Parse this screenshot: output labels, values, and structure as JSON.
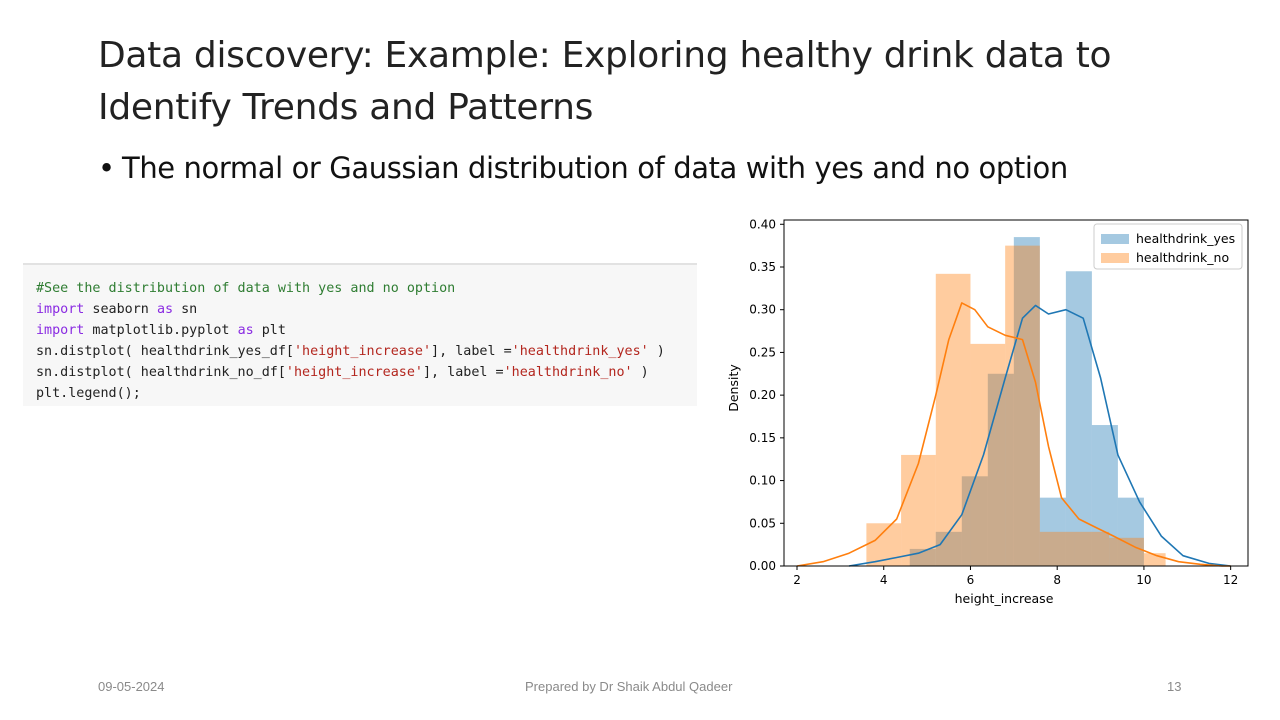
{
  "slide": {
    "title": "Data discovery: Example: Exploring healthy drink data to Identify Trends and Patterns",
    "bullet": "The normal or Gaussian distribution of data with yes and no option",
    "bullet_symbol": "•"
  },
  "code": {
    "lines": [
      [
        {
          "t": "#See the distribution of data with yes and no option",
          "c": "comment"
        }
      ],
      [
        {
          "t": "import",
          "c": "keyword"
        },
        {
          "t": " seaborn ",
          "c": ""
        },
        {
          "t": "as",
          "c": "keyword"
        },
        {
          "t": " sn",
          "c": ""
        }
      ],
      [
        {
          "t": "import",
          "c": "keyword"
        },
        {
          "t": " matplotlib.pyplot ",
          "c": ""
        },
        {
          "t": "as",
          "c": "keyword"
        },
        {
          "t": " plt",
          "c": ""
        }
      ],
      [
        {
          "t": "sn.distplot( healthdrink_yes_df[",
          "c": ""
        },
        {
          "t": "'height_increase'",
          "c": "string"
        },
        {
          "t": "], label =",
          "c": ""
        },
        {
          "t": "'healthdrink_yes'",
          "c": "string"
        },
        {
          "t": " )",
          "c": ""
        }
      ],
      [
        {
          "t": "sn.distplot( healthdrink_no_df[",
          "c": ""
        },
        {
          "t": "'height_increase'",
          "c": "string"
        },
        {
          "t": "], label =",
          "c": ""
        },
        {
          "t": "'healthdrink_no'",
          "c": "string"
        },
        {
          "t": " )",
          "c": ""
        }
      ],
      [
        {
          "t": "plt.legend();",
          "c": ""
        }
      ]
    ]
  },
  "footer": {
    "date": "09-05-2024",
    "author": "Prepared by Dr Shaik Abdul Qadeer",
    "page": "13"
  },
  "colors": {
    "yes": "#1f77b4",
    "no": "#ff7f0e"
  },
  "chart_data": {
    "type": "histogram+kde",
    "title": "",
    "xlabel": "height_increase",
    "ylabel": "Density",
    "xlim": [
      1.7,
      12.4
    ],
    "ylim": [
      0,
      0.405
    ],
    "xticks": [
      2,
      4,
      6,
      8,
      10,
      12
    ],
    "yticks": [
      0.0,
      0.05,
      0.1,
      0.15,
      0.2,
      0.25,
      0.3,
      0.35,
      0.4
    ],
    "ytick_labels": [
      "0.00",
      "0.05",
      "0.10",
      "0.15",
      "0.20",
      "0.25",
      "0.30",
      "0.35",
      "0.40"
    ],
    "legend_position": "top-right",
    "grid": false,
    "series": [
      {
        "name": "healthdrink_yes",
        "color_key": "yes",
        "bins": [
          {
            "x0": 4.6,
            "x1": 5.2,
            "density": 0.02
          },
          {
            "x0": 5.2,
            "x1": 5.8,
            "density": 0.04
          },
          {
            "x0": 5.8,
            "x1": 6.4,
            "density": 0.105
          },
          {
            "x0": 6.4,
            "x1": 7.0,
            "density": 0.225
          },
          {
            "x0": 7.0,
            "x1": 7.6,
            "density": 0.385
          },
          {
            "x0": 7.6,
            "x1": 8.2,
            "density": 0.08
          },
          {
            "x0": 8.2,
            "x1": 8.8,
            "density": 0.345
          },
          {
            "x0": 8.8,
            "x1": 9.4,
            "density": 0.165
          },
          {
            "x0": 9.4,
            "x1": 10.0,
            "density": 0.08
          }
        ],
        "kde": {
          "x": [
            3.2,
            3.8,
            4.3,
            4.8,
            5.3,
            5.8,
            6.3,
            6.8,
            7.2,
            7.5,
            7.8,
            8.2,
            8.6,
            9.0,
            9.4,
            9.9,
            10.4,
            10.9,
            11.5,
            12.0
          ],
          "y": [
            0.0,
            0.005,
            0.01,
            0.015,
            0.025,
            0.06,
            0.13,
            0.22,
            0.29,
            0.305,
            0.295,
            0.3,
            0.29,
            0.22,
            0.13,
            0.075,
            0.035,
            0.012,
            0.003,
            0.0
          ]
        }
      },
      {
        "name": "healthdrink_no",
        "color_key": "no",
        "bins": [
          {
            "x0": 3.6,
            "x1": 4.4,
            "density": 0.05
          },
          {
            "x0": 4.4,
            "x1": 5.2,
            "density": 0.13
          },
          {
            "x0": 5.2,
            "x1": 6.0,
            "density": 0.342
          },
          {
            "x0": 6.0,
            "x1": 6.8,
            "density": 0.26
          },
          {
            "x0": 6.8,
            "x1": 7.6,
            "density": 0.375
          },
          {
            "x0": 7.6,
            "x1": 8.4,
            "density": 0.04
          },
          {
            "x0": 8.4,
            "x1": 9.2,
            "density": 0.04
          },
          {
            "x0": 9.2,
            "x1": 10.0,
            "density": 0.033
          },
          {
            "x0": 10.0,
            "x1": 10.5,
            "density": 0.015
          }
        ],
        "kde": {
          "x": [
            2.0,
            2.6,
            3.2,
            3.8,
            4.3,
            4.8,
            5.2,
            5.5,
            5.8,
            6.1,
            6.4,
            6.8,
            7.2,
            7.5,
            7.8,
            8.1,
            8.5,
            8.9,
            9.3,
            9.8,
            10.3,
            10.8,
            11.3,
            11.8,
            12.0
          ],
          "y": [
            0.0,
            0.005,
            0.015,
            0.03,
            0.055,
            0.12,
            0.2,
            0.265,
            0.308,
            0.3,
            0.28,
            0.27,
            0.265,
            0.215,
            0.14,
            0.08,
            0.055,
            0.045,
            0.035,
            0.022,
            0.012,
            0.005,
            0.002,
            0.0,
            0.0
          ]
        }
      }
    ]
  }
}
